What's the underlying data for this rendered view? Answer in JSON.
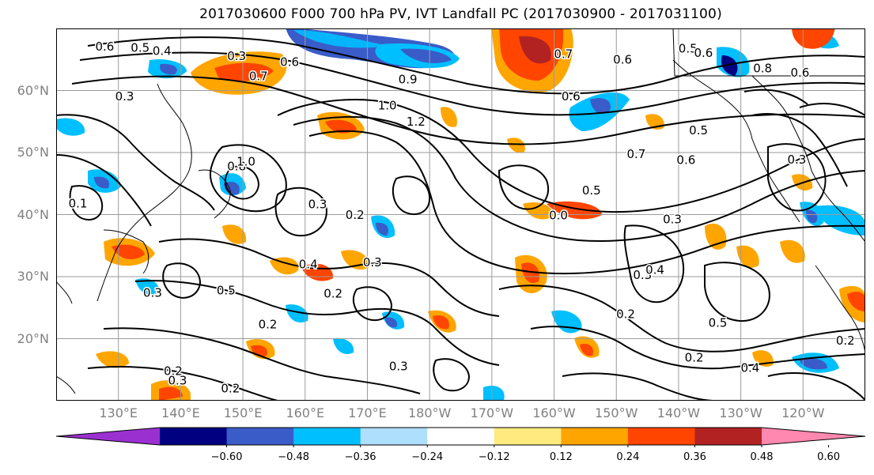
{
  "title": "2017030600 F000 700 hPa PV, IVT Landfall PC (2017030900 - 2017031100)",
  "map": {
    "lat_range": [
      10,
      70
    ],
    "lon_range_east": [
      120,
      250
    ],
    "lat_labels": [
      {
        "lat": 60,
        "text": "60°N"
      },
      {
        "lat": 50,
        "text": "50°N"
      },
      {
        "lat": 40,
        "text": "40°N"
      },
      {
        "lat": 30,
        "text": "30°N"
      },
      {
        "lat": 20,
        "text": "20°N"
      }
    ],
    "lon_labels": [
      {
        "lon": 130,
        "text": "130°E"
      },
      {
        "lon": 140,
        "text": "140°E"
      },
      {
        "lon": 150,
        "text": "150°E"
      },
      {
        "lon": 160,
        "text": "160°E"
      },
      {
        "lon": 170,
        "text": "170°E"
      },
      {
        "lon": 180,
        "text": "180°W"
      },
      {
        "lon": 190,
        "text": "170°W"
      },
      {
        "lon": 200,
        "text": "160°W"
      },
      {
        "lon": 210,
        "text": "150°W"
      },
      {
        "lon": 220,
        "text": "140°W"
      },
      {
        "lon": 230,
        "text": "130°W"
      },
      {
        "lon": 240,
        "text": "120°W"
      }
    ],
    "contour_labels": [
      {
        "lon": 127.8,
        "lat": 67,
        "text": "0.6"
      },
      {
        "lon": 133.5,
        "lat": 66.8,
        "text": "0.5"
      },
      {
        "lon": 137,
        "lat": 66.3,
        "text": "0.4"
      },
      {
        "lon": 131,
        "lat": 59,
        "text": "0.3"
      },
      {
        "lon": 149,
        "lat": 65.5,
        "text": "0.3"
      },
      {
        "lon": 152.5,
        "lat": 62.2,
        "text": "0.7"
      },
      {
        "lon": 157.5,
        "lat": 64.5,
        "text": "0.6"
      },
      {
        "lon": 176.5,
        "lat": 61.7,
        "text": "0.9"
      },
      {
        "lon": 173.2,
        "lat": 57.5,
        "text": "1.0"
      },
      {
        "lon": 177.8,
        "lat": 54.9,
        "text": "1.2"
      },
      {
        "lon": 201.5,
        "lat": 65.8,
        "text": "0.7"
      },
      {
        "lon": 211,
        "lat": 64.9,
        "text": "0.6"
      },
      {
        "lon": 221.5,
        "lat": 66.7,
        "text": "0.5"
      },
      {
        "lon": 224,
        "lat": 66,
        "text": "0.6"
      },
      {
        "lon": 233.5,
        "lat": 63.5,
        "text": "0.8"
      },
      {
        "lon": 239.5,
        "lat": 62.8,
        "text": "0.6"
      },
      {
        "lon": 202.7,
        "lat": 59,
        "text": "0.6"
      },
      {
        "lon": 213.2,
        "lat": 49.7,
        "text": "0.7"
      },
      {
        "lon": 221.2,
        "lat": 48.7,
        "text": "0.6"
      },
      {
        "lon": 223.2,
        "lat": 53.5,
        "text": "0.5"
      },
      {
        "lon": 239,
        "lat": 48.8,
        "text": "0.3"
      },
      {
        "lon": 206,
        "lat": 43.8,
        "text": "0.5"
      },
      {
        "lon": 219,
        "lat": 39.2,
        "text": "0.3"
      },
      {
        "lon": 200.7,
        "lat": 39.8,
        "text": "0.0"
      },
      {
        "lon": 149,
        "lat": 47.7,
        "text": "0.8"
      },
      {
        "lon": 150.5,
        "lat": 48.5,
        "text": "1.0"
      },
      {
        "lon": 123.5,
        "lat": 41.7,
        "text": "0.1"
      },
      {
        "lon": 162,
        "lat": 41.6,
        "text": "0.3"
      },
      {
        "lon": 168,
        "lat": 39.9,
        "text": "0.2"
      },
      {
        "lon": 160.5,
        "lat": 31.9,
        "text": "0.4"
      },
      {
        "lon": 170.8,
        "lat": 32.2,
        "text": "0.3"
      },
      {
        "lon": 135.5,
        "lat": 27.3,
        "text": "0.3"
      },
      {
        "lon": 147.3,
        "lat": 27.7,
        "text": "0.5"
      },
      {
        "lon": 164.5,
        "lat": 27.2,
        "text": "0.2"
      },
      {
        "lon": 154,
        "lat": 22.2,
        "text": "0.2"
      },
      {
        "lon": 138.8,
        "lat": 14.7,
        "text": "0.2"
      },
      {
        "lon": 139.5,
        "lat": 13.2,
        "text": "0.3"
      },
      {
        "lon": 148,
        "lat": 11.9,
        "text": "0.2"
      },
      {
        "lon": 175,
        "lat": 15.5,
        "text": "0.3"
      },
      {
        "lon": 214.2,
        "lat": 30.2,
        "text": "0.3"
      },
      {
        "lon": 216.2,
        "lat": 31,
        "text": "0.4"
      },
      {
        "lon": 211.5,
        "lat": 23.9,
        "text": "0.2"
      },
      {
        "lon": 222.5,
        "lat": 16.9,
        "text": "0.2"
      },
      {
        "lon": 226.3,
        "lat": 22.5,
        "text": "0.5"
      },
      {
        "lon": 231.5,
        "lat": 15.2,
        "text": "0.4"
      },
      {
        "lon": 246.8,
        "lat": 19.6,
        "text": "0.2"
      }
    ]
  },
  "colorbar": {
    "colors": [
      "#9b30d0",
      "#000080",
      "#3a5cc8",
      "#00bfff",
      "#aedffc",
      "#ffffff",
      "#ffea80",
      "#ffa500",
      "#ff4500",
      "#b22222",
      "#ff88b0"
    ],
    "ticks": [
      "−0.60",
      "−0.48",
      "−0.36",
      "−0.24",
      "−0.12",
      "0.12",
      "0.24",
      "0.36",
      "0.48",
      "0.60"
    ]
  }
}
